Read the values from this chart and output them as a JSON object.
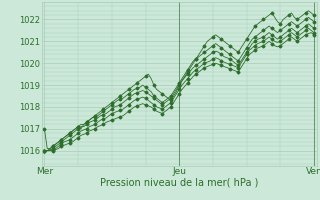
{
  "background_color": "#cce8d8",
  "grid_color": "#aaccb8",
  "line_color": "#2d6e2d",
  "marker_color": "#2d6e2d",
  "xlabel": "Pression niveau de la mer( hPa )",
  "xlabel_fontsize": 7,
  "ylabel_fontsize": 6,
  "ylim": [
    1015.3,
    1022.8
  ],
  "yticks": [
    1016,
    1017,
    1018,
    1019,
    1020,
    1021,
    1022
  ],
  "xtick_labels": [
    "Mer",
    "Jeu",
    "Ven"
  ],
  "xtick_positions": [
    0,
    48,
    96
  ],
  "total_points": 97,
  "series": [
    [
      1017.0,
      1016.1,
      1016.1,
      1016.2,
      1016.3,
      1016.4,
      1016.5,
      1016.6,
      1016.7,
      1016.8,
      1016.9,
      1017.0,
      1017.1,
      1017.0,
      1017.2,
      1017.3,
      1017.4,
      1017.5,
      1017.6,
      1017.7,
      1017.8,
      1017.9,
      1018.0,
      1018.1,
      1018.2,
      1018.3,
      1018.4,
      1018.5,
      1018.6,
      1018.7,
      1018.8,
      1018.9,
      1019.0,
      1019.1,
      1019.2,
      1019.3,
      1019.4,
      1019.5,
      1019.3,
      1019.0,
      1018.8,
      1018.7,
      1018.6,
      1018.5,
      1018.4,
      1018.3,
      1018.5,
      1018.7,
      1019.0,
      1019.2,
      1019.4,
      1019.6,
      1019.8,
      1020.0,
      1020.2,
      1020.4,
      1020.6,
      1020.8,
      1021.0,
      1021.1,
      1021.2,
      1021.3,
      1021.2,
      1021.1,
      1021.0,
      1020.9,
      1020.8,
      1020.7,
      1020.6,
      1020.5,
      1020.7,
      1020.9,
      1021.1,
      1021.3,
      1021.5,
      1021.7,
      1021.8,
      1021.9,
      1022.0,
      1022.1,
      1022.2,
      1022.3,
      1022.1,
      1021.9,
      1021.8,
      1022.0,
      1022.1,
      1022.2,
      1022.3,
      1022.1,
      1022.0,
      1022.1,
      1022.2,
      1022.3,
      1022.4,
      1022.3,
      1022.2
    ],
    [
      1016.0,
      1016.0,
      1016.1,
      1016.2,
      1016.3,
      1016.4,
      1016.5,
      1016.6,
      1016.7,
      1016.8,
      1016.9,
      1017.0,
      1017.1,
      1017.2,
      1017.2,
      1017.3,
      1017.4,
      1017.5,
      1017.55,
      1017.6,
      1017.7,
      1017.8,
      1017.9,
      1018.0,
      1018.1,
      1018.2,
      1018.3,
      1018.35,
      1018.4,
      1018.5,
      1018.6,
      1018.7,
      1018.8,
      1018.85,
      1018.9,
      1019.0,
      1018.9,
      1018.8,
      1018.7,
      1018.5,
      1018.4,
      1018.3,
      1018.2,
      1018.3,
      1018.4,
      1018.5,
      1018.7,
      1018.9,
      1019.1,
      1019.3,
      1019.5,
      1019.7,
      1019.9,
      1020.1,
      1020.2,
      1020.3,
      1020.4,
      1020.5,
      1020.6,
      1020.7,
      1020.8,
      1020.9,
      1020.8,
      1020.7,
      1020.6,
      1020.5,
      1020.4,
      1020.3,
      1020.2,
      1020.1,
      1020.3,
      1020.5,
      1020.7,
      1020.9,
      1021.1,
      1021.2,
      1021.3,
      1021.4,
      1021.5,
      1021.6,
      1021.7,
      1021.6,
      1021.5,
      1021.4,
      1021.5,
      1021.6,
      1021.7,
      1021.8,
      1021.9,
      1021.8,
      1021.7,
      1021.8,
      1021.9,
      1022.0,
      1022.1,
      1022.0,
      1021.9
    ],
    [
      1016.0,
      1016.0,
      1016.05,
      1016.1,
      1016.2,
      1016.3,
      1016.4,
      1016.5,
      1016.6,
      1016.7,
      1016.8,
      1016.9,
      1017.0,
      1017.1,
      1017.1,
      1017.2,
      1017.3,
      1017.35,
      1017.4,
      1017.5,
      1017.6,
      1017.65,
      1017.7,
      1017.8,
      1017.9,
      1018.0,
      1018.05,
      1018.1,
      1018.2,
      1018.3,
      1018.4,
      1018.5,
      1018.6,
      1018.65,
      1018.7,
      1018.75,
      1018.7,
      1018.6,
      1018.5,
      1018.4,
      1018.3,
      1018.2,
      1018.1,
      1018.2,
      1018.3,
      1018.4,
      1018.6,
      1018.8,
      1019.0,
      1019.2,
      1019.35,
      1019.5,
      1019.65,
      1019.8,
      1019.9,
      1020.0,
      1020.1,
      1020.2,
      1020.3,
      1020.4,
      1020.5,
      1020.55,
      1020.5,
      1020.4,
      1020.3,
      1020.25,
      1020.2,
      1020.1,
      1020.0,
      1019.9,
      1020.1,
      1020.3,
      1020.5,
      1020.7,
      1020.9,
      1021.0,
      1021.1,
      1021.15,
      1021.2,
      1021.3,
      1021.4,
      1021.3,
      1021.2,
      1021.1,
      1021.2,
      1021.3,
      1021.4,
      1021.5,
      1021.6,
      1021.5,
      1021.4,
      1021.5,
      1021.6,
      1021.7,
      1021.8,
      1021.7,
      1021.6
    ],
    [
      1016.0,
      1016.0,
      1016.0,
      1016.05,
      1016.1,
      1016.2,
      1016.3,
      1016.4,
      1016.45,
      1016.5,
      1016.6,
      1016.7,
      1016.8,
      1016.9,
      1016.95,
      1017.0,
      1017.1,
      1017.15,
      1017.2,
      1017.3,
      1017.4,
      1017.45,
      1017.5,
      1017.6,
      1017.7,
      1017.75,
      1017.8,
      1017.85,
      1017.9,
      1018.0,
      1018.1,
      1018.2,
      1018.3,
      1018.35,
      1018.4,
      1018.45,
      1018.4,
      1018.3,
      1018.2,
      1018.1,
      1018.0,
      1017.95,
      1017.9,
      1018.0,
      1018.1,
      1018.2,
      1018.4,
      1018.6,
      1018.8,
      1019.0,
      1019.15,
      1019.3,
      1019.45,
      1019.6,
      1019.7,
      1019.8,
      1019.9,
      1020.0,
      1020.05,
      1020.1,
      1020.2,
      1020.25,
      1020.2,
      1020.1,
      1020.05,
      1020.0,
      1019.95,
      1019.9,
      1019.85,
      1019.8,
      1020.0,
      1020.2,
      1020.4,
      1020.6,
      1020.7,
      1020.8,
      1020.9,
      1020.95,
      1021.0,
      1021.1,
      1021.2,
      1021.1,
      1021.0,
      1020.95,
      1021.0,
      1021.1,
      1021.2,
      1021.3,
      1021.4,
      1021.3,
      1021.2,
      1021.3,
      1021.4,
      1021.5,
      1021.6,
      1021.5,
      1021.4
    ],
    [
      1016.0,
      1016.0,
      1016.0,
      1016.0,
      1016.05,
      1016.1,
      1016.2,
      1016.25,
      1016.3,
      1016.35,
      1016.4,
      1016.5,
      1016.6,
      1016.7,
      1016.75,
      1016.8,
      1016.9,
      1016.95,
      1017.0,
      1017.1,
      1017.15,
      1017.2,
      1017.3,
      1017.35,
      1017.4,
      1017.45,
      1017.5,
      1017.55,
      1017.6,
      1017.7,
      1017.8,
      1017.9,
      1018.0,
      1018.05,
      1018.1,
      1018.15,
      1018.1,
      1018.05,
      1018.0,
      1017.9,
      1017.8,
      1017.75,
      1017.7,
      1017.8,
      1017.9,
      1018.0,
      1018.2,
      1018.4,
      1018.6,
      1018.8,
      1018.95,
      1019.1,
      1019.25,
      1019.4,
      1019.5,
      1019.6,
      1019.7,
      1019.8,
      1019.85,
      1019.9,
      1019.95,
      1020.0,
      1019.95,
      1019.9,
      1019.85,
      1019.8,
      1019.75,
      1019.7,
      1019.65,
      1019.6,
      1019.8,
      1020.0,
      1020.2,
      1020.4,
      1020.5,
      1020.6,
      1020.7,
      1020.75,
      1020.8,
      1020.9,
      1021.0,
      1020.9,
      1020.8,
      1020.75,
      1020.8,
      1020.9,
      1021.0,
      1021.1,
      1021.2,
      1021.1,
      1021.0,
      1021.1,
      1021.2,
      1021.3,
      1021.35,
      1021.4,
      1021.3
    ]
  ]
}
